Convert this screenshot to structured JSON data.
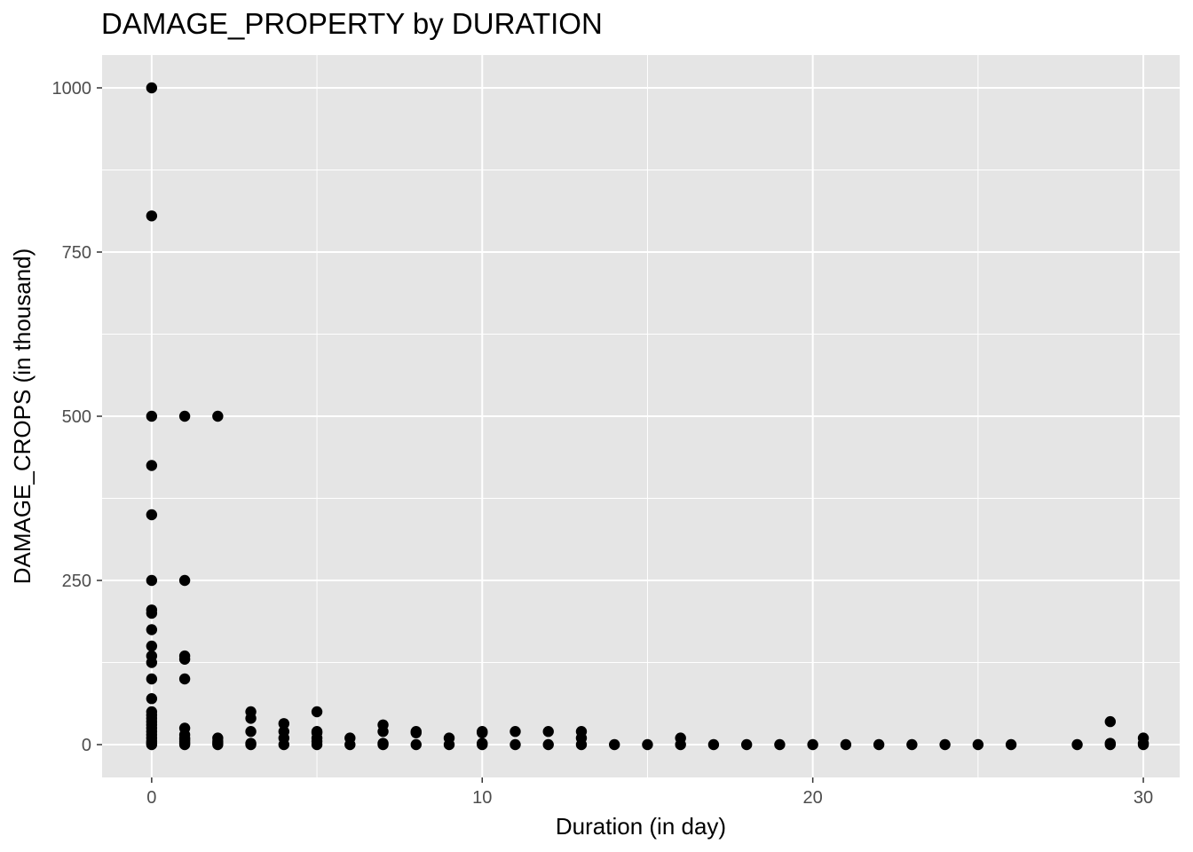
{
  "chart_data": {
    "type": "scatter",
    "title": "DAMAGE_PROPERTY by DURATION",
    "xlabel": "Duration (in day)",
    "ylabel": "DAMAGE_CROPS (in thousand)",
    "xlim": [
      -1.5,
      31.1
    ],
    "ylim": [
      -50,
      1050
    ],
    "x_ticks": [
      0,
      10,
      20,
      30
    ],
    "x_tick_labels": [
      "0",
      "10",
      "20",
      "30"
    ],
    "y_ticks": [
      0,
      250,
      500,
      750,
      1000
    ],
    "y_tick_labels": [
      "0",
      "250",
      "500",
      "750",
      "1000"
    ],
    "grid": true,
    "background": "#e5e5e5",
    "grid_color": "#ffffff",
    "point_color": "#000000",
    "points": [
      [
        0,
        1000
      ],
      [
        0,
        805
      ],
      [
        0,
        500
      ],
      [
        0,
        425
      ],
      [
        0,
        350
      ],
      [
        0,
        250
      ],
      [
        0,
        205
      ],
      [
        0,
        200
      ],
      [
        0,
        175
      ],
      [
        0,
        150
      ],
      [
        0,
        135
      ],
      [
        0,
        125
      ],
      [
        0,
        100
      ],
      [
        0,
        70
      ],
      [
        0,
        50
      ],
      [
        0,
        45
      ],
      [
        0,
        40
      ],
      [
        0,
        35
      ],
      [
        0,
        30
      ],
      [
        0,
        25
      ],
      [
        0,
        20
      ],
      [
        0,
        15
      ],
      [
        0,
        10
      ],
      [
        0,
        5
      ],
      [
        0,
        2
      ],
      [
        0,
        0
      ],
      [
        1,
        500
      ],
      [
        1,
        250
      ],
      [
        1,
        135
      ],
      [
        1,
        130
      ],
      [
        1,
        100
      ],
      [
        1,
        25
      ],
      [
        1,
        15
      ],
      [
        1,
        10
      ],
      [
        1,
        8
      ],
      [
        1,
        5
      ],
      [
        1,
        2
      ],
      [
        1,
        0
      ],
      [
        2,
        500
      ],
      [
        2,
        10
      ],
      [
        2,
        5
      ],
      [
        2,
        2
      ],
      [
        2,
        0
      ],
      [
        3,
        50
      ],
      [
        3,
        40
      ],
      [
        3,
        20
      ],
      [
        3,
        2
      ],
      [
        3,
        0
      ],
      [
        4,
        32
      ],
      [
        4,
        20
      ],
      [
        4,
        10
      ],
      [
        4,
        0
      ],
      [
        5,
        50
      ],
      [
        5,
        20
      ],
      [
        5,
        18
      ],
      [
        5,
        10
      ],
      [
        5,
        5
      ],
      [
        5,
        0
      ],
      [
        6,
        10
      ],
      [
        6,
        0
      ],
      [
        7,
        30
      ],
      [
        7,
        20
      ],
      [
        7,
        2
      ],
      [
        7,
        0
      ],
      [
        8,
        20
      ],
      [
        8,
        18
      ],
      [
        8,
        0
      ],
      [
        9,
        10
      ],
      [
        9,
        0
      ],
      [
        10,
        20
      ],
      [
        10,
        18
      ],
      [
        10,
        2
      ],
      [
        10,
        0
      ],
      [
        11,
        20
      ],
      [
        11,
        0
      ],
      [
        12,
        20
      ],
      [
        12,
        0
      ],
      [
        13,
        20
      ],
      [
        13,
        10
      ],
      [
        13,
        0
      ],
      [
        14,
        0
      ],
      [
        15,
        0
      ],
      [
        16,
        10
      ],
      [
        16,
        0
      ],
      [
        17,
        0
      ],
      [
        18,
        0
      ],
      [
        19,
        0
      ],
      [
        20,
        0
      ],
      [
        21,
        0
      ],
      [
        22,
        0
      ],
      [
        23,
        0
      ],
      [
        24,
        0
      ],
      [
        25,
        0
      ],
      [
        26,
        0
      ],
      [
        28,
        0
      ],
      [
        29,
        35
      ],
      [
        29,
        2
      ],
      [
        29,
        0
      ],
      [
        30,
        10
      ],
      [
        30,
        2
      ],
      [
        30,
        0
      ]
    ]
  }
}
